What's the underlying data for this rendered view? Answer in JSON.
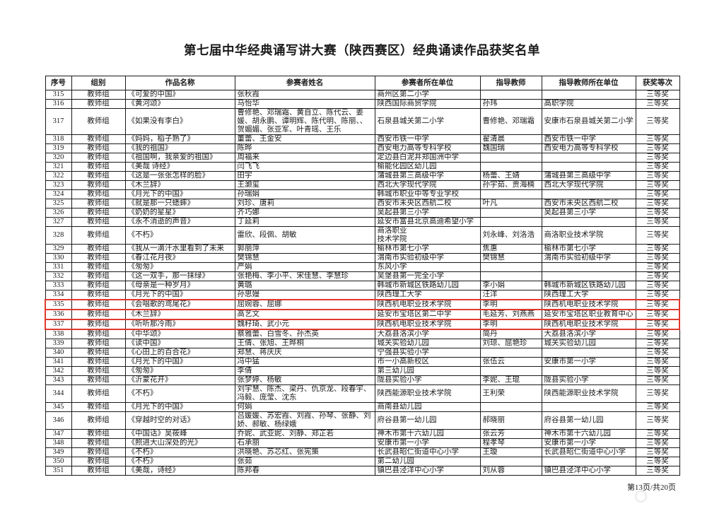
{
  "page": {
    "title": "第七届中华经典诵写讲大赛（陕西赛区）经典诵读作品获奖名单",
    "footer": "第13页/共20页"
  },
  "colors": {
    "highlight_border": "#e0392e"
  },
  "table": {
    "headers": [
      "序号",
      "组别",
      "作品名称",
      "参赛者姓名",
      "参赛者所在单位",
      "指导教师",
      "指导教师所在单位",
      "获奖等次"
    ],
    "rows": [
      {
        "no": "315",
        "group": "教师组",
        "title": "《可爱的中国》",
        "participants": "张秋霞",
        "unit": "商州区第二小学",
        "teachers": "",
        "teacher_unit": "",
        "award": "三等奖",
        "highlight": false
      },
      {
        "no": "316",
        "group": "教师组",
        "title": "《黄河颂》",
        "participants": "马怡华",
        "unit": "陕西国际商贸学院",
        "teachers": "孙玮",
        "teacher_unit": "高职学院",
        "award": "三等奖",
        "highlight": false
      },
      {
        "no": "317",
        "group": "教师组",
        "title": "《如果没有李白》",
        "participants": "曹修艳、邓瑞霜、黄自立、陈代云、姜媛、胡永鹏、谭明辉、陈代明、陈丽、、贺媚媚、张亚军、叶青瑶、王乐",
        "unit": "石泉县城关第二小学",
        "teachers": "曹修艳、邓瑞霜",
        "teacher_unit": "安康市石泉县城关第二小学",
        "award": "三等奖",
        "highlight": false
      },
      {
        "no": "318",
        "group": "教师组",
        "title": "《妈妈，稻子熟了》",
        "participants": "董蕾、王金安",
        "unit": "西安市铁一中学",
        "teachers": "翟清晨",
        "teacher_unit": "西安市铁一中学",
        "award": "三等奖",
        "highlight": false
      },
      {
        "no": "319",
        "group": "教师组",
        "title": "《我的祖国》",
        "participants": "陈晔",
        "unit": "西安电力高等专科学校",
        "teachers": "魏国瑞",
        "teacher_unit": "西安电力高等专科学校",
        "award": "三等奖",
        "highlight": false
      },
      {
        "no": "320",
        "group": "教师组",
        "title": "《祖国啊，我亲爱的祖国》",
        "participants": "周福来",
        "unit": "定边县白泥井郑国洲中学",
        "teachers": "",
        "teacher_unit": "",
        "award": "三等奖",
        "highlight": false
      },
      {
        "no": "321",
        "group": "教师组",
        "title": "《美哉 诗经》",
        "participants": "闫飞飞",
        "unit": "榆能化园区幼儿园",
        "teachers": "",
        "teacher_unit": "",
        "award": "三等奖",
        "highlight": false
      },
      {
        "no": "322",
        "group": "教师组",
        "title": "《这是一张张怎样的脸》",
        "participants": "田宇",
        "unit": "蒲城县第三高级中学",
        "teachers": "杨蕾、王婧",
        "teacher_unit": "蒲城县第三高级中学",
        "award": "三等奖",
        "highlight": false
      },
      {
        "no": "323",
        "group": "教师组",
        "title": "《木兰辞》",
        "participants": "王灏玺",
        "unit": "西北大学现代学院",
        "teachers": "孙宇茹、贾海楠",
        "teacher_unit": "西北大学现代学院",
        "award": "三等奖",
        "highlight": false
      },
      {
        "no": "324",
        "group": "教师组",
        "title": "《月光下的中国》",
        "participants": "孙瑞娟",
        "unit": "韩城市职业中等专业学校",
        "teachers": "",
        "teacher_unit": "",
        "award": "三等奖",
        "highlight": false
      },
      {
        "no": "325",
        "group": "教师组",
        "title": "《就是那一只蟋蟀》",
        "participants": "刘珍、唐莉",
        "unit": "西安市未央区西航二校",
        "teachers": "叶凡",
        "teacher_unit": "西安市未央区西航二校",
        "award": "三等奖",
        "highlight": false
      },
      {
        "no": "326",
        "group": "教师组",
        "title": "《奶奶的星星》",
        "participants": "齐巧娜",
        "unit": "吴起县第三小学",
        "teachers": "",
        "teacher_unit": "吴起县第三小学",
        "award": "三等奖",
        "highlight": false
      },
      {
        "no": "327",
        "group": "教师组",
        "title": "《永不消逝的声音》",
        "participants": "丁延莉",
        "unit": "延安市富县北京高迪希望小学",
        "teachers": "",
        "teacher_unit": "",
        "award": "三等奖",
        "highlight": false
      },
      {
        "no": "328",
        "group": "教师组",
        "title": "《不朽》",
        "participants": "雷欣、段佩、胡敏",
        "unit": "商洛职业\n技术学院",
        "teachers": "刘永峰、刘洛浩",
        "teacher_unit": "商洛职业技术学院",
        "award": "三等奖",
        "highlight": false
      },
      {
        "no": "329",
        "group": "教师组",
        "title": "《我从一滴汗水里看到了未来",
        "participants": "郭丽萍",
        "unit": "榆林市第七小学",
        "teachers": "焦惠",
        "teacher_unit": "榆林市第七小学",
        "award": "三等奖",
        "highlight": false
      },
      {
        "no": "330",
        "group": "教师组",
        "title": "《春江花月夜》",
        "participants": "樊锦慧",
        "unit": "渭南市实验初级中学",
        "teachers": "樊锦慧",
        "teacher_unit": "渭南市实验初级中学",
        "award": "三等奖",
        "highlight": false
      },
      {
        "no": "331",
        "group": "教师组",
        "title": "《匆匆》",
        "participants": "严娟",
        "unit": "东风小学",
        "teachers": "",
        "teacher_unit": "",
        "award": "三等奖",
        "highlight": false
      },
      {
        "no": "332",
        "group": "教师组",
        "title": "《这一双手，那一抹绿》",
        "participants": "张艳梅、李小平、宋佳慧、李慧珍",
        "unit": "吴堡县第一完全小学",
        "teachers": "",
        "teacher_unit": "",
        "award": "三等奖",
        "highlight": false
      },
      {
        "no": "333",
        "group": "教师组",
        "title": "《母亲是一种岁月》",
        "participants": "黄璐",
        "unit": "韩城市新城区铁路幼儿园",
        "teachers": "李小娟",
        "teacher_unit": "韩城市新城区铁路幼儿园",
        "award": "三等奖",
        "highlight": false
      },
      {
        "no": "334",
        "group": "教师组",
        "title": "《月光下的中国》",
        "participants": "孙思嫚",
        "unit": "陕西理工大学",
        "teachers": "汪洋",
        "teacher_unit": "陕西理工大学",
        "award": "三等奖",
        "highlight": false
      },
      {
        "no": "335",
        "group": "教师组",
        "title": "《会唱歌的鸢尾花》",
        "participants": "屈婉蓉、屈娜",
        "unit": "陕西机电职业技术学院",
        "teachers": "李明",
        "teacher_unit": "陕西机电职业技术学院",
        "award": "三等奖",
        "highlight": true
      },
      {
        "no": "336",
        "group": "教师组",
        "title": "《木兰辞》",
        "participants": "高艺文",
        "unit": "延安市宝塔区第二中学",
        "teachers": "毛延芳、刘燕燕",
        "teacher_unit": "延安市宝塔区职业教育中心",
        "award": "三等奖",
        "highlight": true
      },
      {
        "no": "337",
        "group": "教师组",
        "title": "《听听那冷雨》",
        "participants": "魏籽琦、武小元",
        "unit": "陕西机电职业技术学院",
        "teachers": "李明",
        "teacher_unit": "陕西机电职业技术学院",
        "award": "三等奖",
        "highlight": true
      },
      {
        "no": "338",
        "group": "教师组",
        "title": "《中华颂》",
        "participants": "蔡雅蕾、白雪冬、孙杰英",
        "unit": "大荔县洛滨小学",
        "teachers": "简丹",
        "teacher_unit": "大荔县洛滨小学",
        "award": "三等奖",
        "highlight": false
      },
      {
        "no": "339",
        "group": "教师组",
        "title": "《读中国》",
        "participants": "王倩、张旭、王晔桐",
        "unit": "城关实验幼儿园",
        "teachers": "刘琼、屈艳珍",
        "teacher_unit": "城关实验幼儿园",
        "award": "三等奖",
        "highlight": false
      },
      {
        "no": "340",
        "group": "教师组",
        "title": "《心田上的百合花》",
        "participants": "郑慧、蒋庆庆",
        "unit": "宁强县实验小学",
        "teachers": "",
        "teacher_unit": "",
        "award": "三等奖",
        "highlight": false
      },
      {
        "no": "341",
        "group": "教师组",
        "title": "《月光下的中国》",
        "participants": "冯中猛",
        "unit": "市一小高新校区",
        "teachers": "张伍云",
        "teacher_unit": "安康市第一小学",
        "award": "三等奖",
        "highlight": false
      },
      {
        "no": "342",
        "group": "教师组",
        "title": "《匆匆》",
        "participants": "李倩",
        "unit": "第三幼儿园",
        "teachers": "",
        "teacher_unit": "",
        "award": "三等奖",
        "highlight": false
      },
      {
        "no": "343",
        "group": "教师组",
        "title": "《沂蒙花开》",
        "participants": "张梦婷、杨敏",
        "unit": "陇县实验小学",
        "teachers": "李妮、王琨",
        "teacher_unit": "陇县实验小学",
        "award": "三等奖",
        "highlight": false
      },
      {
        "no": "344",
        "group": "教师组",
        "title": "《不朽》",
        "participants": "刘宇慧、陈杰、梁丹、仇京龙、段春宇、冯毅、庞莹、沈东",
        "unit": "陕西能源职业技术学院",
        "teachers": "王利荣",
        "teacher_unit": "陕西能源职业技术学院",
        "award": "三等奖",
        "highlight": false
      },
      {
        "no": "345",
        "group": "教师组",
        "title": "《月光下的中国》",
        "participants": "何娟",
        "unit": "商南县幼儿园",
        "teachers": "",
        "teacher_unit": "",
        "award": "三等奖",
        "highlight": false
      },
      {
        "no": "346",
        "group": "教师组",
        "title": "《穿越时空的对话》",
        "participants": "吕媛媛、苏宏霞、刘霞、孙琴、张静、刘娇、郝敏、杨绿娥",
        "unit": "府谷县第一幼儿园",
        "teachers": "郝晓丽",
        "teacher_unit": "府谷县第一幼儿园",
        "award": "三等奖",
        "highlight": false
      },
      {
        "no": "347",
        "group": "教师组",
        "title": "《中国话》吴筱峰",
        "participants": "乔妮、武亚妮、刘静、郑芷若",
        "unit": "神木市第十六幼儿园",
        "teachers": "张云芳",
        "teacher_unit": "神木市第十六幼儿园",
        "award": "三等奖",
        "highlight": false
      },
      {
        "no": "348",
        "group": "教师组",
        "title": "《照进大山深处的光》",
        "participants": "石承丽",
        "unit": "安康市第一小学",
        "teachers": "程孝琴",
        "teacher_unit": "安康市第一小学",
        "award": "三等奖",
        "highlight": false
      },
      {
        "no": "349",
        "group": "教师组",
        "title": "《不朽》",
        "participants": "洪晓艳、苏芯红、张宪策",
        "unit": "长武县昭仁街道中心小学",
        "teachers": "王璇",
        "teacher_unit": "长武县昭仁街道中心小学",
        "award": "三等奖",
        "highlight": false
      },
      {
        "no": "350",
        "group": "教师组",
        "title": "《不朽》",
        "participants": "张茹",
        "unit": "第二幼儿园",
        "teachers": "",
        "teacher_unit": "",
        "award": "三等奖",
        "highlight": false
      },
      {
        "no": "351",
        "group": "教师组",
        "title": "《美哉，诗经》",
        "participants": "陈邦春",
        "unit": "镇巴县泾洋中心小学",
        "teachers": "刘从蓉",
        "teacher_unit": "镇巴县泾洋中心小学",
        "award": "三等奖",
        "highlight": false
      }
    ]
  }
}
